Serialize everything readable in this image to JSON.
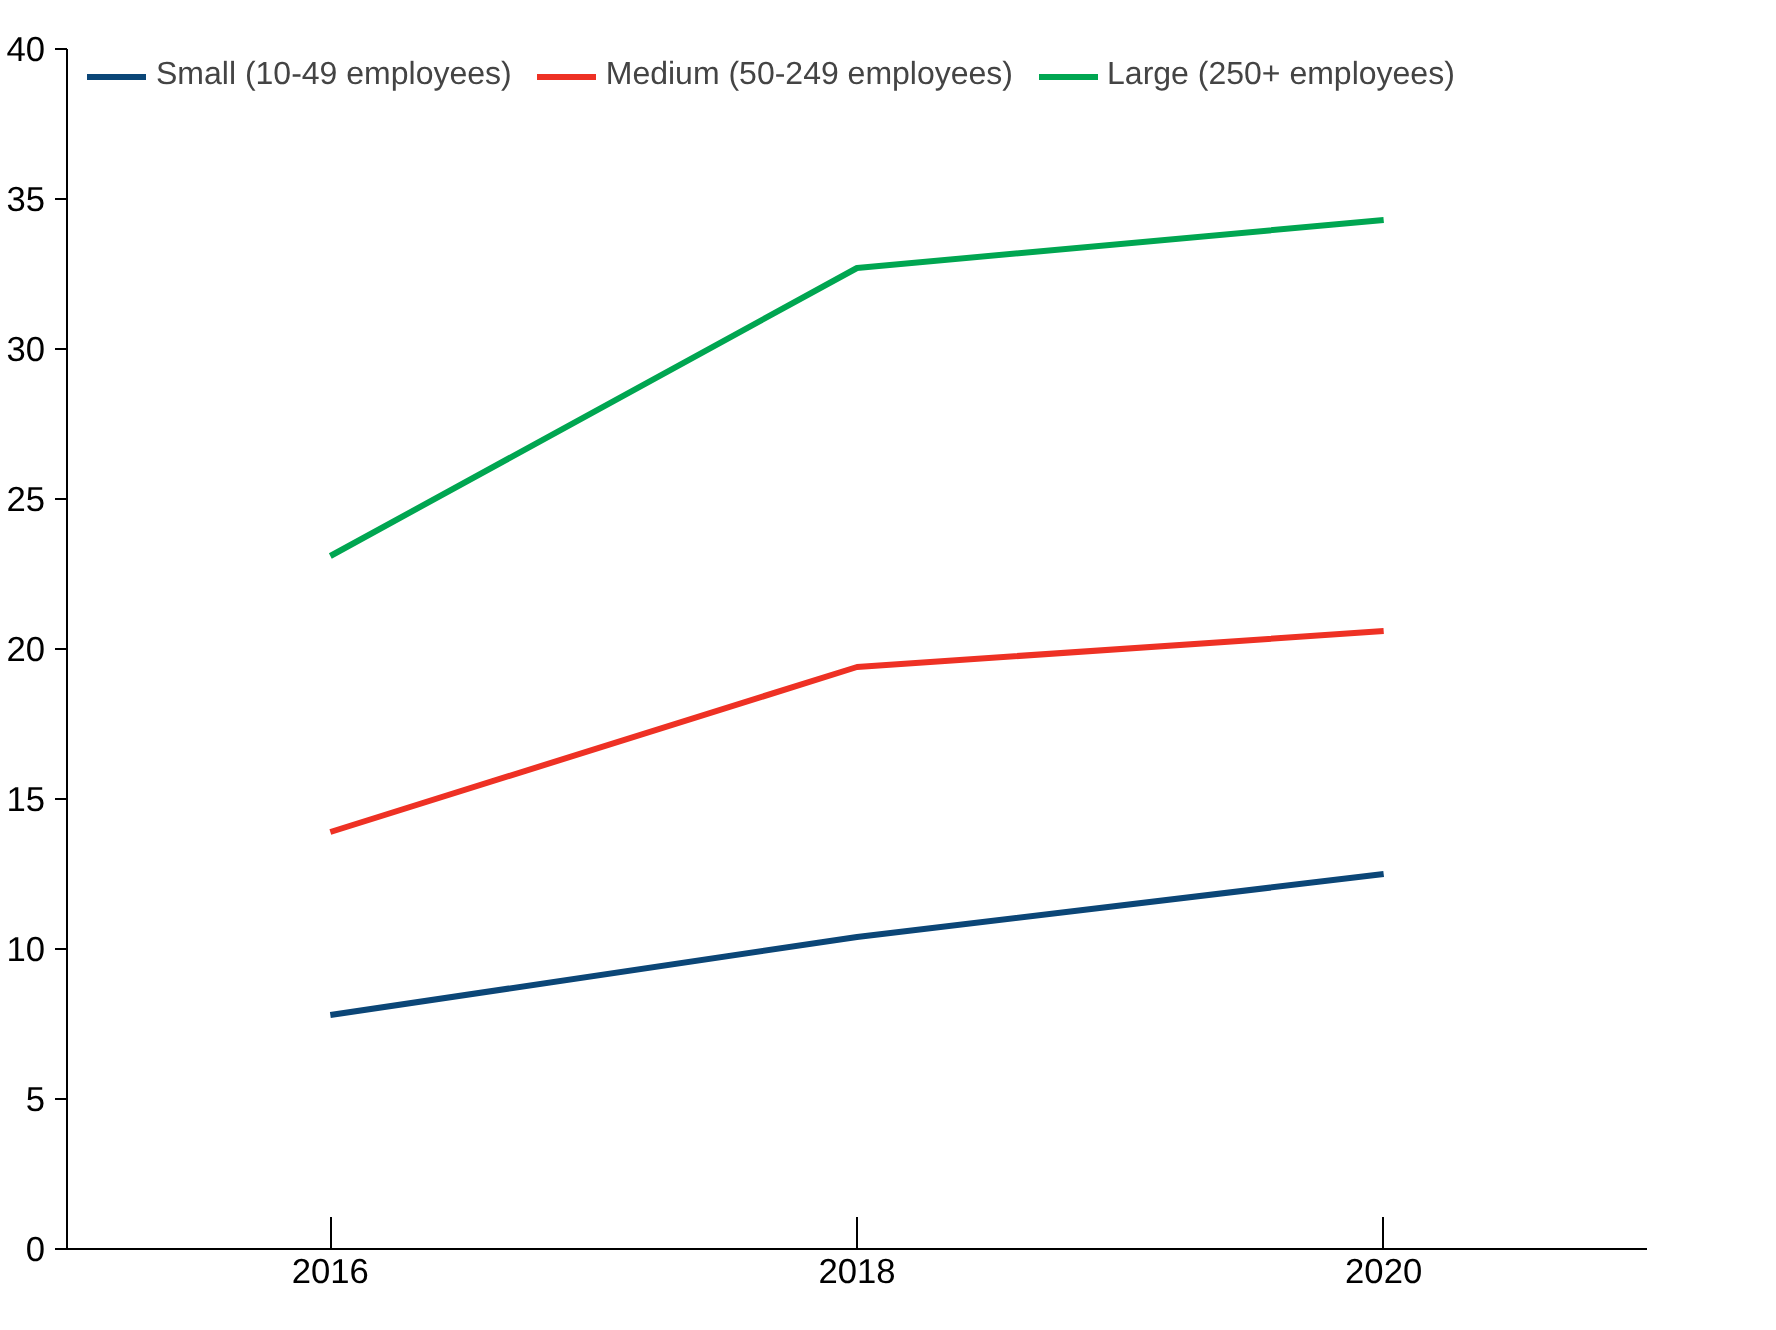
{
  "chart_data": {
    "type": "line",
    "x": [
      2016,
      2018,
      2020
    ],
    "xlim": [
      2015,
      2021
    ],
    "xticks": [
      2016,
      2018,
      2020
    ],
    "ylim": [
      0,
      40
    ],
    "yticks": [
      0,
      5,
      10,
      15,
      20,
      25,
      30,
      35,
      40
    ],
    "grid": false,
    "legend": "top",
    "marker": "none",
    "line_style": "solid",
    "series": [
      {
        "name": "Small (10-49 employees)",
        "color": "#0b4677",
        "values": [
          7.8,
          10.4,
          12.5
        ]
      },
      {
        "name": "Medium (50-249 employees)",
        "color": "#ee3124",
        "values": [
          13.9,
          19.4,
          20.6
        ]
      },
      {
        "name": "Large (250+ employees)",
        "color": "#00a651",
        "values": [
          23.1,
          32.7,
          34.3
        ]
      }
    ]
  }
}
